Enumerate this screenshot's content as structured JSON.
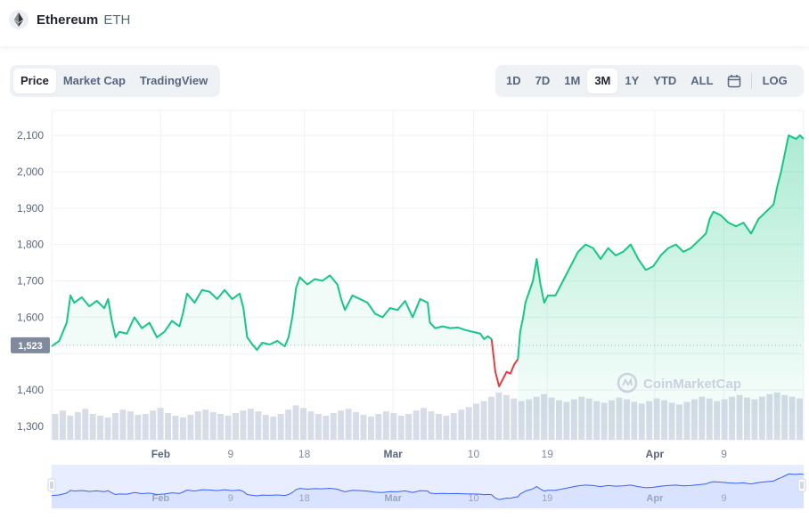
{
  "header": {
    "coin_name": "Ethereum",
    "coin_symbol": "ETH",
    "logo_icon": "ethereum-diamond-icon"
  },
  "view_tabs": [
    {
      "label": "Price",
      "active": true
    },
    {
      "label": "Market Cap",
      "active": false
    },
    {
      "label": "TradingView",
      "active": false
    }
  ],
  "range_tabs": [
    {
      "label": "1D",
      "active": false
    },
    {
      "label": "7D",
      "active": false
    },
    {
      "label": "1M",
      "active": false
    },
    {
      "label": "3M",
      "active": true
    },
    {
      "label": "1Y",
      "active": false
    },
    {
      "label": "YTD",
      "active": false
    },
    {
      "label": "ALL",
      "active": false
    }
  ],
  "calendar_icon": "calendar-icon",
  "log_label": "LOG",
  "watermark": "CoinMarketCap",
  "colors": {
    "up": "#16c784",
    "down": "#ea3943",
    "area_top": "#16c784",
    "volume": "#cfd6e4",
    "navigator_line": "#3861fb",
    "navigator_fill": "#e8edff",
    "reference_tag": "#808a9d"
  },
  "chart_data": {
    "type": "line",
    "title": "",
    "xlabel": "",
    "ylabel": "",
    "ylim": [
      1270,
      2170
    ],
    "yticks": [
      1300,
      1400,
      1500,
      1600,
      1700,
      1800,
      1900,
      2000,
      2100
    ],
    "ytick_labels": [
      "1,300",
      "1,400",
      "1,500",
      "1,600",
      "1,700",
      "1,800",
      "1,900",
      "2,000",
      "2,100"
    ],
    "xlim": [
      0,
      100
    ],
    "xticks": [
      {
        "label": "Feb",
        "x": 14.5
      },
      {
        "label": "9",
        "x": 23.8
      },
      {
        "label": "18",
        "x": 33.6
      },
      {
        "label": "Mar",
        "x": 45.4
      },
      {
        "label": "10",
        "x": 56.1
      },
      {
        "label": "19",
        "x": 65.9
      },
      {
        "label": "Apr",
        "x": 80.2
      },
      {
        "label": "9",
        "x": 89.4
      }
    ],
    "reference_price": 1523,
    "reference_label": "1,523",
    "grid": true,
    "series": [
      {
        "values": [
          [
            0,
            1520
          ],
          [
            1,
            1535
          ],
          [
            2,
            1585
          ],
          [
            2.5,
            1660
          ],
          [
            3,
            1640
          ],
          [
            4,
            1655
          ],
          [
            5,
            1630
          ],
          [
            6,
            1645
          ],
          [
            7,
            1625
          ],
          [
            7.5,
            1650
          ],
          [
            8,
            1590
          ],
          [
            8.5,
            1545
          ],
          [
            9,
            1560
          ],
          [
            10,
            1555
          ],
          [
            11,
            1600
          ],
          [
            12,
            1570
          ],
          [
            13,
            1585
          ],
          [
            14,
            1545
          ],
          [
            15,
            1560
          ],
          [
            16,
            1590
          ],
          [
            17,
            1575
          ],
          [
            17.5,
            1615
          ],
          [
            18,
            1665
          ],
          [
            19,
            1640
          ],
          [
            20,
            1675
          ],
          [
            21,
            1670
          ],
          [
            22,
            1650
          ],
          [
            23,
            1675
          ],
          [
            24,
            1650
          ],
          [
            25,
            1665
          ],
          [
            25.5,
            1625
          ],
          [
            26,
            1545
          ],
          [
            26.7,
            1525
          ],
          [
            27.3,
            1510
          ],
          [
            28,
            1530
          ],
          [
            29,
            1525
          ],
          [
            30,
            1535
          ],
          [
            31,
            1520
          ],
          [
            31.5,
            1545
          ],
          [
            32,
            1600
          ],
          [
            32.5,
            1680
          ],
          [
            33,
            1710
          ],
          [
            34,
            1690
          ],
          [
            35,
            1705
          ],
          [
            36,
            1700
          ],
          [
            37,
            1715
          ],
          [
            38,
            1690
          ],
          [
            38.5,
            1650
          ],
          [
            39,
            1620
          ],
          [
            40,
            1660
          ],
          [
            41,
            1650
          ],
          [
            42,
            1640
          ],
          [
            43,
            1610
          ],
          [
            44,
            1600
          ],
          [
            45,
            1625
          ],
          [
            46,
            1620
          ],
          [
            47,
            1645
          ],
          [
            48,
            1600
          ],
          [
            49,
            1650
          ],
          [
            50,
            1640
          ],
          [
            50.3,
            1585
          ],
          [
            51,
            1570
          ],
          [
            52,
            1575
          ],
          [
            53,
            1570
          ],
          [
            54,
            1572
          ],
          [
            55,
            1565
          ],
          [
            56,
            1560
          ],
          [
            57,
            1555
          ],
          [
            57.5,
            1540
          ],
          [
            58,
            1548
          ],
          [
            58.5,
            1540
          ]
        ]
      },
      {
        "values": [
          [
            58.5,
            1540
          ],
          [
            59,
            1450
          ],
          [
            59.5,
            1410
          ],
          [
            60,
            1430
          ],
          [
            60.5,
            1450
          ],
          [
            61,
            1445
          ],
          [
            61.5,
            1470
          ],
          [
            62,
            1485
          ]
        ]
      },
      {
        "values": [
          [
            62,
            1485
          ],
          [
            62.3,
            1560
          ],
          [
            62.7,
            1600
          ],
          [
            63,
            1640
          ],
          [
            63.5,
            1670
          ],
          [
            64,
            1700
          ],
          [
            64.5,
            1760
          ],
          [
            65,
            1690
          ],
          [
            65.5,
            1640
          ],
          [
            66,
            1660
          ],
          [
            67,
            1660
          ],
          [
            68,
            1700
          ],
          [
            69,
            1740
          ],
          [
            70,
            1780
          ],
          [
            71,
            1800
          ],
          [
            72,
            1790
          ],
          [
            73,
            1760
          ],
          [
            74,
            1790
          ],
          [
            75,
            1770
          ],
          [
            76,
            1780
          ],
          [
            77,
            1800
          ],
          [
            78,
            1760
          ],
          [
            79,
            1730
          ],
          [
            80,
            1740
          ],
          [
            81,
            1770
          ],
          [
            82,
            1790
          ],
          [
            83,
            1800
          ],
          [
            84,
            1780
          ],
          [
            85,
            1790
          ],
          [
            86,
            1810
          ],
          [
            87,
            1830
          ],
          [
            87.5,
            1870
          ],
          [
            88,
            1890
          ],
          [
            89,
            1880
          ],
          [
            90,
            1860
          ],
          [
            91,
            1850
          ],
          [
            92,
            1860
          ],
          [
            93,
            1830
          ],
          [
            94,
            1870
          ],
          [
            95,
            1890
          ],
          [
            96,
            1910
          ],
          [
            96.5,
            1960
          ],
          [
            97,
            2000
          ],
          [
            97.5,
            2050
          ],
          [
            98,
            2100
          ],
          [
            99,
            2090
          ],
          [
            99.5,
            2100
          ],
          [
            100,
            2090
          ]
        ]
      }
    ],
    "volume_values": [
      30,
      34,
      28,
      32,
      36,
      30,
      28,
      26,
      31,
      35,
      33,
      29,
      30,
      34,
      37,
      31,
      28,
      26,
      29,
      33,
      35,
      32,
      30,
      28,
      31,
      34,
      36,
      33,
      29,
      27,
      30,
      35,
      40,
      37,
      33,
      30,
      28,
      31,
      34,
      36,
      32,
      29,
      27,
      30,
      33,
      31,
      28,
      30,
      34,
      37,
      33,
      30,
      28,
      31,
      35,
      38,
      42,
      45,
      50,
      55,
      52,
      48,
      45,
      47,
      50,
      53,
      49,
      46,
      44,
      47,
      50,
      48,
      45,
      43,
      46,
      49,
      47,
      44,
      42,
      45,
      48,
      46,
      43,
      41,
      44,
      47,
      50,
      48,
      45,
      47,
      50,
      52,
      49,
      47,
      50,
      53,
      55,
      52,
      50,
      48
    ]
  }
}
